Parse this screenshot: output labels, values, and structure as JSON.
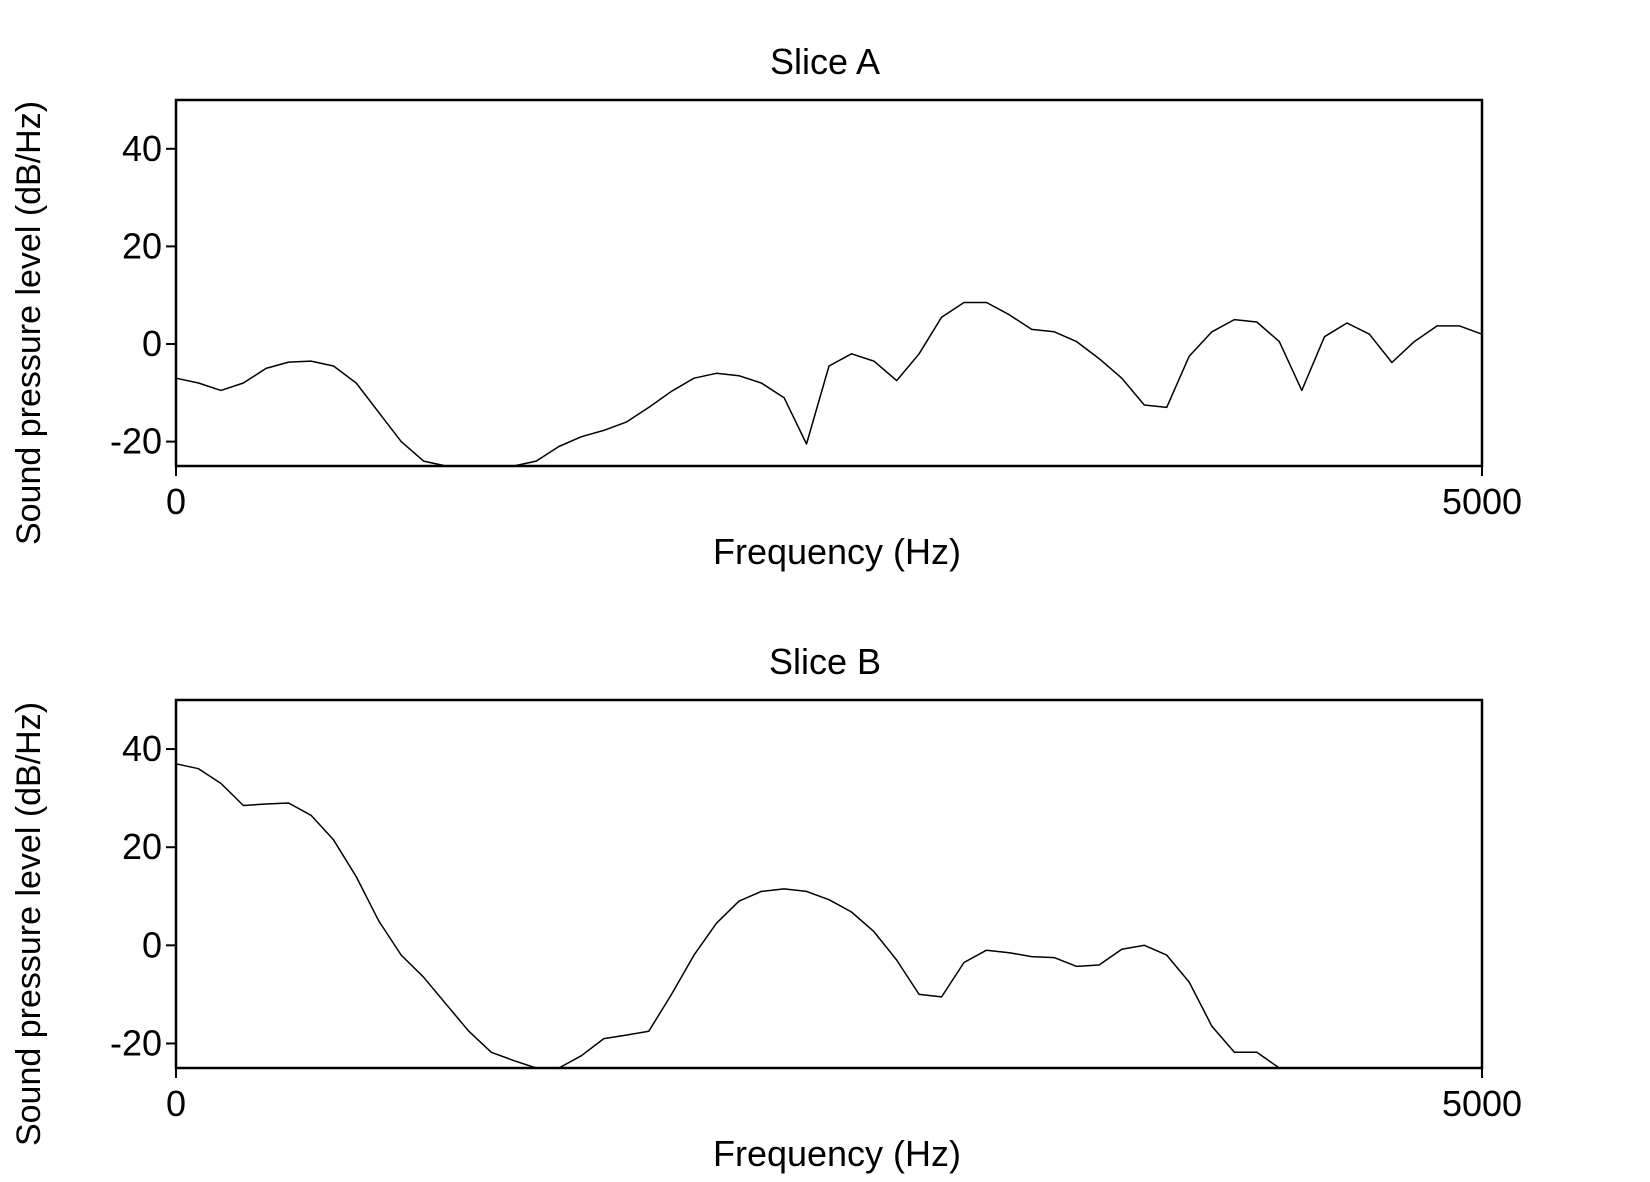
{
  "chart_data": [
    {
      "type": "line",
      "title": "Slice A",
      "xlabel": "Frequency (Hz)",
      "ylabel": "Sound pressure level (dB/Hz)",
      "xlim": [
        0,
        5000
      ],
      "ylim": [
        -25,
        50
      ],
      "xticks": [
        0,
        5000
      ],
      "yticks": [
        -20,
        0,
        20,
        40
      ],
      "grid": false,
      "series": [
        {
          "x": [
            0,
            86,
            172,
            258,
            345,
            431,
            517,
            603,
            690,
            776,
            862,
            948,
            1034,
            1121,
            1207,
            1293,
            1379,
            1466,
            1552,
            1638,
            1724,
            1810,
            1897,
            1983,
            2069,
            2155,
            2241,
            2328,
            2414,
            2500,
            2586,
            2672,
            2759,
            2845,
            2931,
            3017,
            3103,
            3190,
            3276,
            3362,
            3448,
            3534,
            3621,
            3707,
            3793,
            3879,
            3966,
            4052,
            4138,
            4224,
            4310,
            4397,
            4483,
            4569,
            4655,
            4741,
            4828,
            4914,
            5000
          ],
          "y": [
            -7,
            -8,
            -9.5,
            -8,
            -5,
            -3.7,
            -3.5,
            -4.5,
            -8,
            -14,
            -20,
            -24,
            -25,
            -25,
            -25,
            -25,
            -24,
            -21,
            -19,
            -17.7,
            -16,
            -13,
            -9.7,
            -7,
            -6,
            -6.5,
            -8,
            -11,
            -20.5,
            -4.5,
            -2,
            -3.5,
            -7.5,
            -2,
            5.5,
            8.5,
            8.5,
            6,
            3,
            2.5,
            0.5,
            -3,
            -7,
            -12.5,
            -13,
            -2.5,
            2.5,
            5,
            4.5,
            0.5,
            -9.5,
            1.5,
            4.3,
            2,
            -3.8,
            0.5,
            3.7,
            3.7,
            2
          ]
        }
      ]
    },
    {
      "type": "line",
      "title": "Slice B",
      "xlabel": "Frequency (Hz)",
      "ylabel": "Sound pressure level (dB/Hz)",
      "xlim": [
        0,
        5000
      ],
      "ylim": [
        -25,
        50
      ],
      "xticks": [
        0,
        5000
      ],
      "yticks": [
        -20,
        0,
        20,
        40
      ],
      "grid": false,
      "series": [
        {
          "x": [
            0,
            86,
            172,
            258,
            345,
            431,
            517,
            603,
            690,
            776,
            862,
            948,
            1034,
            1121,
            1207,
            1293,
            1379,
            1466,
            1552,
            1638,
            1724,
            1810,
            1897,
            1983,
            2069,
            2155,
            2241,
            2328,
            2414,
            2500,
            2586,
            2672,
            2759,
            2845,
            2931,
            3017,
            3103,
            3190,
            3276,
            3362,
            3448,
            3534,
            3621,
            3707,
            3793,
            3879,
            3966,
            4052,
            4138,
            4224,
            4310,
            4397,
            4483,
            4569,
            4655,
            4741,
            4828,
            4914,
            5000
          ],
          "y": [
            37,
            36,
            33,
            28.5,
            28.8,
            29,
            26.5,
            21.5,
            14,
            5,
            -2,
            -6.5,
            -12,
            -17.5,
            -21.8,
            -23.5,
            -25,
            -25,
            -22.5,
            -19,
            -18.3,
            -17.5,
            -10,
            -2,
            4.5,
            9,
            11,
            11.5,
            11,
            9.3,
            6.8,
            2.8,
            -3,
            -10,
            -10.5,
            -3.5,
            -1,
            -1.5,
            -2.3,
            -2.5,
            -4.3,
            -4,
            -0.8,
            0,
            -2,
            -7.5,
            -16.5,
            -21.8,
            -21.8,
            -25,
            -25,
            -25,
            -25,
            -25,
            -25,
            -25,
            -25,
            -25,
            -25
          ]
        }
      ]
    }
  ]
}
